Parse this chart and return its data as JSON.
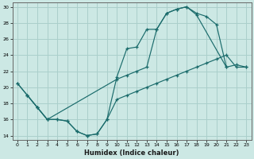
{
  "xlabel": "Humidex (Indice chaleur)",
  "xlim": [
    -0.5,
    23.5
  ],
  "ylim": [
    13.5,
    30.5
  ],
  "xticks": [
    0,
    1,
    2,
    3,
    4,
    5,
    6,
    7,
    8,
    9,
    10,
    11,
    12,
    13,
    14,
    15,
    16,
    17,
    18,
    19,
    20,
    21,
    22,
    23
  ],
  "yticks": [
    14,
    16,
    18,
    20,
    22,
    24,
    26,
    28,
    30
  ],
  "background_color": "#cce8e4",
  "grid_color": "#aacfcb",
  "line_color": "#1a6b6b",
  "line1": {
    "x": [
      0,
      1,
      2,
      3,
      4,
      5,
      6,
      7,
      8,
      9,
      10,
      11,
      12,
      13,
      14,
      15,
      16,
      17,
      18,
      21
    ],
    "y": [
      20.5,
      19.0,
      17.5,
      16.0,
      16.0,
      15.8,
      14.5,
      14.0,
      14.2,
      16.0,
      21.3,
      24.8,
      25.0,
      27.2,
      27.2,
      29.2,
      29.7,
      30.0,
      29.0,
      22.5
    ]
  },
  "line2": {
    "x": [
      0,
      1,
      2,
      3,
      10,
      11,
      12,
      13,
      14,
      15,
      16,
      17,
      18,
      19,
      20,
      21,
      22,
      23
    ],
    "y": [
      20.5,
      19.0,
      17.5,
      16.0,
      21.0,
      21.5,
      22.0,
      22.5,
      27.2,
      29.2,
      29.7,
      30.0,
      29.2,
      28.8,
      27.8,
      22.5,
      22.8,
      22.5
    ]
  },
  "line3": {
    "x": [
      1,
      2,
      3,
      4,
      5,
      6,
      7,
      8,
      9,
      10,
      11,
      12,
      13,
      14,
      15,
      16,
      17,
      18,
      19,
      20,
      21,
      22,
      23
    ],
    "y": [
      19.0,
      17.5,
      16.0,
      16.0,
      15.8,
      14.5,
      14.0,
      14.2,
      16.0,
      18.5,
      19.0,
      19.5,
      20.0,
      20.5,
      21.0,
      21.5,
      22.0,
      22.5,
      23.0,
      23.5,
      24.0,
      22.5,
      22.5
    ]
  }
}
